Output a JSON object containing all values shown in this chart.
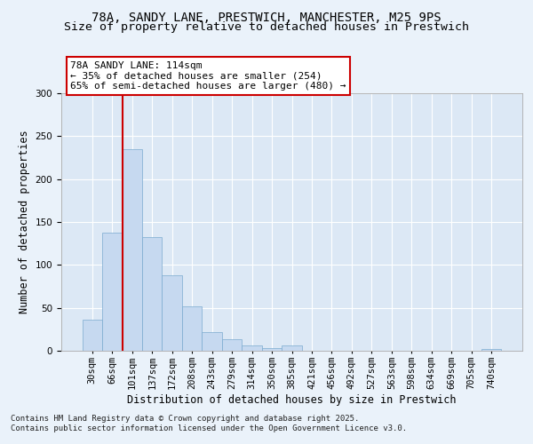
{
  "title1": "78A, SANDY LANE, PRESTWICH, MANCHESTER, M25 9PS",
  "title2": "Size of property relative to detached houses in Prestwich",
  "xlabel": "Distribution of detached houses by size in Prestwich",
  "ylabel": "Number of detached properties",
  "categories": [
    "30sqm",
    "66sqm",
    "101sqm",
    "137sqm",
    "172sqm",
    "208sqm",
    "243sqm",
    "279sqm",
    "314sqm",
    "350sqm",
    "385sqm",
    "421sqm",
    "456sqm",
    "492sqm",
    "527sqm",
    "563sqm",
    "598sqm",
    "634sqm",
    "669sqm",
    "705sqm",
    "740sqm"
  ],
  "values": [
    36,
    138,
    235,
    132,
    88,
    52,
    22,
    13,
    6,
    3,
    6,
    0,
    0,
    0,
    0,
    0,
    0,
    0,
    0,
    0,
    2
  ],
  "bar_color": "#c6d9f0",
  "bar_edge_color": "#7aaacf",
  "vline_color": "#cc0000",
  "vline_x": 1.5,
  "annotation_text": "78A SANDY LANE: 114sqm\n← 35% of detached houses are smaller (254)\n65% of semi-detached houses are larger (480) →",
  "annotation_box_facecolor": "#ffffff",
  "annotation_box_edgecolor": "#cc0000",
  "ylim_max": 300,
  "yticks": [
    0,
    50,
    100,
    150,
    200,
    250,
    300
  ],
  "plot_bg_color": "#dce8f5",
  "fig_bg_color": "#eaf2fa",
  "grid_color": "#ffffff",
  "footer": "Contains HM Land Registry data © Crown copyright and database right 2025.\nContains public sector information licensed under the Open Government Licence v3.0.",
  "title1_fontsize": 10,
  "title2_fontsize": 9.5,
  "ylabel_fontsize": 8.5,
  "xlabel_fontsize": 8.5,
  "tick_fontsize": 7.5,
  "ann_fontsize": 8,
  "footer_fontsize": 6.5
}
